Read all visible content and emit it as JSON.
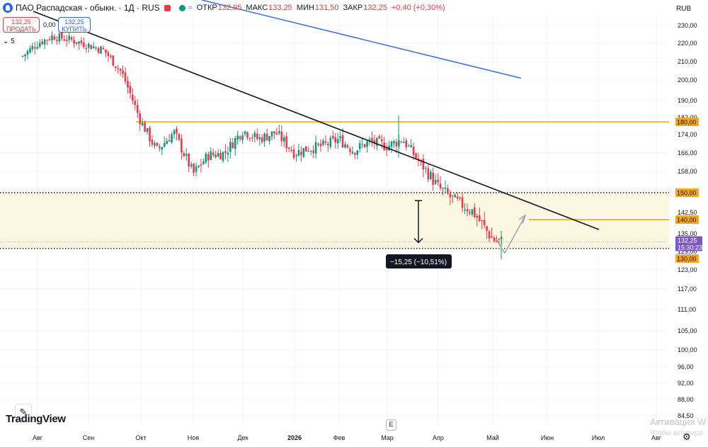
{
  "header": {
    "title": "ПАО Распадская - обыкн. · 1Д · RUS",
    "open_label": "ОТКР",
    "open_value": "132,95",
    "high_label": "МАКС",
    "high_value": "133,25",
    "low_label": "МИН",
    "low_value": "131,50",
    "close_label": "ЗАКР",
    "close_value": "132,25",
    "change": "+0,40 (+0,30%)",
    "equals": "≈"
  },
  "trade": {
    "sell_price": "132,25",
    "sell_label": "ПРОДАТЬ",
    "buy_price": "132,25",
    "buy_label": "КУПИТЬ",
    "spread": "0,00"
  },
  "indicators_count": "5",
  "currency": "RUB",
  "brand": "TradingView",
  "event_badge": "E",
  "watermark": "Активация W",
  "watermark_sub": "Чтобы активиро",
  "colors": {
    "up": "#089981",
    "down": "#f23645",
    "orange": "#f0a500",
    "blue": "#3c6fd6",
    "purple": "#7e57c2",
    "zone": "#fdf8e1"
  },
  "chart_data": {
    "type": "candlestick",
    "symbol": "ПАО Распадская - обыкн.",
    "interval": "1Д",
    "ylim": [
      84.5,
      236
    ],
    "y_ticks": [
      "230,00",
      "220,00",
      "210,00",
      "200,00",
      "190,00",
      "182,00",
      "174,00",
      "166,00",
      "158,00",
      "150,00",
      "142,50",
      "135,00",
      "129,00",
      "123,00",
      "117,00",
      "111,00",
      "105,00",
      "100,00",
      "96,00",
      "92,00",
      "88,00",
      "84,50"
    ],
    "x_ticks": [
      "Авг",
      "Сен",
      "Окт",
      "Ноя",
      "Дек",
      "2026",
      "Фев",
      "Мар",
      "Апр",
      "Май",
      "Июн",
      "Июл",
      "Авг"
    ],
    "price_labels": [
      {
        "text": "180,00",
        "value": 180,
        "kind": "level"
      },
      {
        "text": "150,00",
        "value": 150,
        "kind": "level"
      },
      {
        "text": "140,00",
        "value": 140,
        "kind": "level"
      },
      {
        "text": "130,00",
        "value": 130,
        "kind": "level"
      },
      {
        "text": "132,25",
        "sub": "15:30:23",
        "value": 132.25,
        "kind": "last"
      }
    ],
    "series": [
      {
        "name": "close",
        "points": [
          [
            "Июл 22",
            213
          ],
          [
            "Авг 1",
            220
          ],
          [
            "Авг 10",
            224
          ],
          [
            "Авг 20",
            222
          ],
          [
            "Сен 1",
            219
          ],
          [
            "Сен 10",
            216
          ],
          [
            "Сен 20",
            204
          ],
          [
            "Окт 1",
            180
          ],
          [
            "Окт 10",
            167
          ],
          [
            "Окт 20",
            175
          ],
          [
            "Ноя 1",
            157
          ],
          [
            "Ноя 10",
            165
          ],
          [
            "Ноя 20",
            166
          ],
          [
            "Дек 1",
            176
          ],
          [
            "Дек 10",
            172
          ],
          [
            "Дек 20",
            175
          ],
          [
            "Янв 1",
            166
          ],
          [
            "Янв 10",
            168
          ],
          [
            "Янв 20",
            169
          ],
          [
            "Фев 1",
            172
          ],
          [
            "Фев 10",
            167
          ],
          [
            "Фев 20",
            171
          ],
          [
            "Мар 1",
            169
          ],
          [
            "Мар 10",
            172
          ],
          [
            "Мар 20",
            162
          ],
          [
            "Апр 1",
            152
          ],
          [
            "Апр 10",
            147
          ],
          [
            "Апр 20",
            143
          ],
          [
            "Май 1",
            133
          ],
          [
            "Май 6",
            132.25
          ]
        ]
      }
    ],
    "levels": [
      {
        "name": "level-180",
        "value": 180,
        "style": "solid",
        "color": "#f0a500"
      },
      {
        "name": "level-150",
        "value": 150,
        "style": "dotted",
        "color": "#131722"
      },
      {
        "name": "level-140",
        "value": 140,
        "style": "solid",
        "color": "#f0a500"
      },
      {
        "name": "level-130",
        "value": 130,
        "style": "dotted",
        "color": "#131722"
      }
    ],
    "zone": {
      "from": 130,
      "to": 150
    },
    "trendlines": [
      {
        "name": "black-trendline",
        "from": [
          "Июл 22",
          236
        ],
        "to": [
          "Июл 3",
          136
        ],
        "color": "#131722"
      },
      {
        "name": "blue-trendline",
        "from": [
          "Авг 18",
          236
        ],
        "to": [
          "Май 22",
          201
        ],
        "color": "#3c6fd6"
      }
    ],
    "measure": {
      "label": "−15,25 (−10,51%)",
      "from": 147,
      "to": 132
    },
    "forecast_path": [
      [
        "Май 3",
        133
      ],
      [
        "Май 9",
        128
      ],
      [
        "Май 20",
        141
      ]
    ]
  }
}
